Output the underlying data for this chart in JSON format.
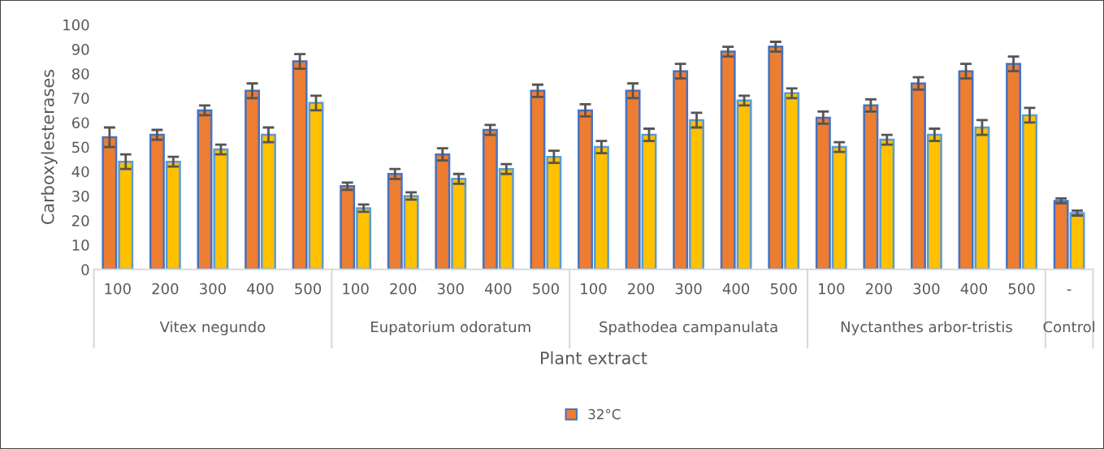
{
  "chart_data": {
    "type": "bar",
    "xlabel": "Plant extract",
    "ylabel": "Carboxylesterases",
    "categories": [
      "100",
      "200",
      "300",
      "400",
      "500",
      "100",
      "200",
      "300",
      "400",
      "500",
      "100",
      "200",
      "300",
      "400",
      "500",
      "100",
      "200",
      "300",
      "400",
      "500",
      "-"
    ],
    "annotations": [
      "Vitex negundo",
      "Eupatorium odoratum",
      "Spathodea campanulata",
      "Nyctanthes arbor-tristis",
      "Control"
    ],
    "series": [
      {
        "name": "32°C",
        "color": "#ed7d31",
        "values": [
          54,
          55,
          65,
          73,
          85,
          34,
          39,
          47,
          57,
          73,
          65,
          73,
          81,
          89,
          91,
          62,
          67,
          76,
          81,
          84,
          28
        ],
        "errors": [
          4,
          2,
          2,
          3,
          3,
          1.5,
          2,
          2.5,
          2,
          2.5,
          2.5,
          3,
          3,
          2,
          2,
          2.5,
          2.5,
          2.5,
          3,
          3,
          1
        ]
      },
      {
        "color": "#ffc000",
        "values": [
          44,
          44,
          49,
          55,
          68,
          25,
          30,
          37,
          41,
          46,
          50,
          55,
          61,
          69,
          72,
          50,
          53,
          55,
          58,
          63,
          23
        ],
        "errors": [
          3,
          2,
          2,
          3,
          3,
          1.5,
          1.5,
          2,
          2,
          2.5,
          2.5,
          2.5,
          3,
          2,
          2,
          2,
          2,
          2.5,
          3,
          3,
          1
        ]
      }
    ],
    "ylim": [
      0,
      100
    ],
    "yticks": [
      0,
      10,
      20,
      30,
      40,
      50,
      60,
      70,
      80,
      90,
      100
    ],
    "grid": false,
    "legend": "bottom"
  }
}
